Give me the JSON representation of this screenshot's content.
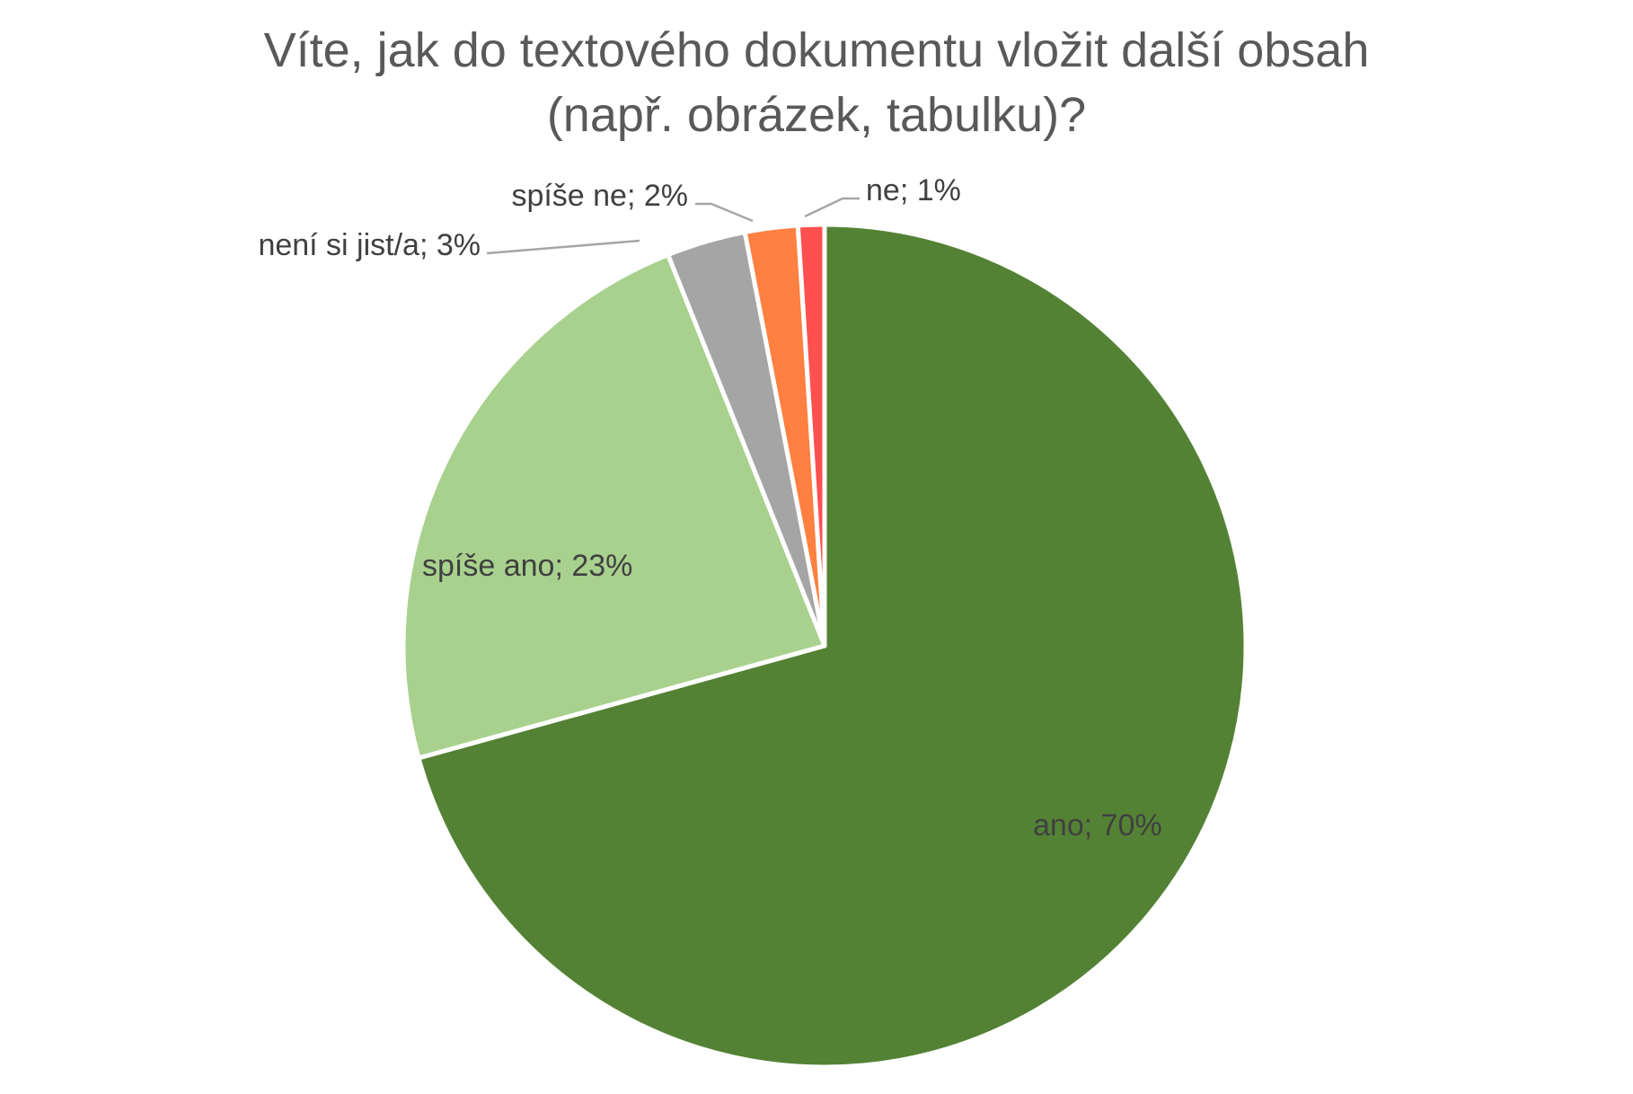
{
  "chart_data": {
    "type": "pie",
    "title_lines": [
      "Víte, jak do textového dokumentu vložit další obsah",
      "(např. obrázek, tabulku)?"
    ],
    "categories": [
      "ano",
      "spíše ano",
      "není si jist/a",
      "spíše ne",
      "ne"
    ],
    "values": [
      70,
      23,
      3,
      2,
      1
    ],
    "labels": [
      "ano; 70%",
      "spíše ano; 23%",
      "není si jist/a; 3%",
      "spíše ne; 2%",
      "ne; 1%"
    ],
    "colors": [
      "#548235",
      "#a9d18e",
      "#a5a5a5",
      "#ff8040",
      "#ff5050"
    ],
    "start_angle": "12 o'clock",
    "direction": "clockwise"
  }
}
